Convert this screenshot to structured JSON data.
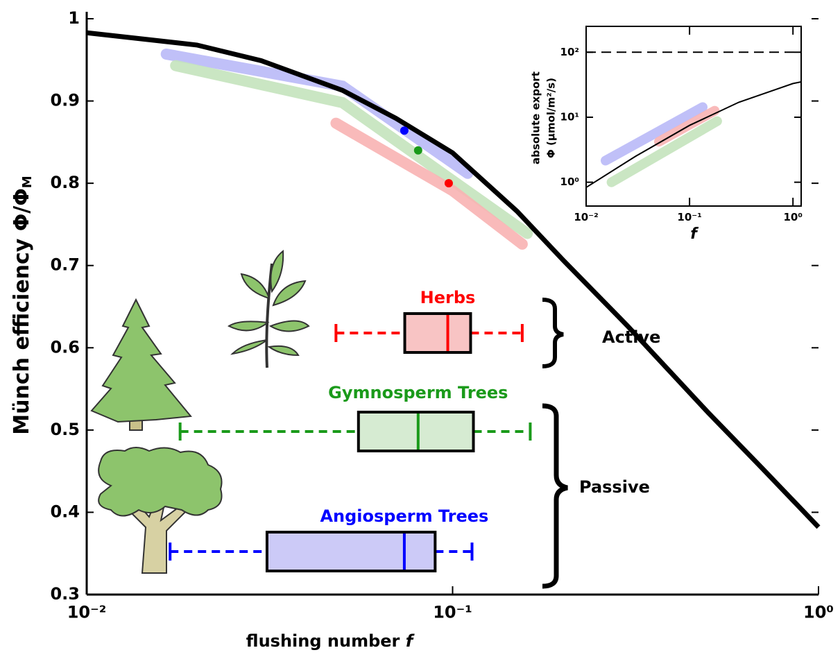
{
  "chart_data": [
    {
      "type": "line",
      "xscale": "log",
      "x_label": "flushing number",
      "x_label_var": "f",
      "y_label": "Münch efficiency Φ/Φ",
      "y_label_sub": "M",
      "xlim": [
        0.01,
        1
      ],
      "ylim": [
        0.3,
        1
      ],
      "xticks": [
        {
          "value": 0.01,
          "label": "10⁻²"
        },
        {
          "value": 0.1,
          "label": "10⁻¹"
        },
        {
          "value": 1,
          "label": "10⁰"
        }
      ],
      "yticks": [
        0.3,
        0.4,
        0.5,
        0.6,
        0.7,
        0.8,
        0.9,
        1
      ],
      "series": [
        {
          "style": "band",
          "color": "#b9b9f7",
          "x": [
            0.0165,
            0.05,
            0.11
          ],
          "values": [
            0.957,
            0.918,
            0.812
          ]
        },
        {
          "style": "band",
          "color": "#c4e3bd",
          "x": [
            0.0175,
            0.05,
            0.16
          ],
          "values": [
            0.943,
            0.898,
            0.739
          ]
        },
        {
          "style": "band",
          "color": "#f8b3b3",
          "x": [
            0.048,
            0.1,
            0.155
          ],
          "values": [
            0.873,
            0.791,
            0.726
          ]
        },
        {
          "style": "curve",
          "color": "#000000",
          "x": [
            0.01,
            0.02,
            0.03,
            0.05,
            0.07,
            0.1,
            0.15,
            0.2,
            0.3,
            0.5,
            0.7,
            1
          ],
          "values": [
            0.983,
            0.968,
            0.949,
            0.913,
            0.879,
            0.837,
            0.766,
            0.707,
            0.627,
            0.521,
            0.454,
            0.382
          ]
        }
      ],
      "points": [
        {
          "color": "#0000ff",
          "x": 0.0738,
          "value": 0.864
        },
        {
          "color": "#1a9a1a",
          "x": 0.0805,
          "value": 0.84
        },
        {
          "color": "#ff0000",
          "x": 0.0976,
          "value": 0.8
        }
      ],
      "boxes": [
        {
          "name": "Herbs",
          "color": "#ff0000",
          "fill": "#f8c4c4",
          "whisker_low": 0.048,
          "q1": 0.074,
          "median": 0.097,
          "q3": 0.112,
          "whisker_high": 0.155
        },
        {
          "name": "Gymnosperm Trees",
          "color": "#1a9a1a",
          "fill": "#d6ebd2",
          "whisker_low": 0.018,
          "q1": 0.0553,
          "median": 0.0805,
          "q3": 0.114,
          "whisker_high": 0.163
        },
        {
          "name": "Angiosperm Trees",
          "color": "#0000ff",
          "fill": "#cccaf7",
          "whisker_low": 0.0169,
          "q1": 0.0311,
          "median": 0.0738,
          "q3": 0.0896,
          "whisker_high": 0.113
        }
      ],
      "group_labels": [
        "Active",
        "Passive"
      ]
    },
    {
      "type": "line",
      "xscale": "log",
      "yscale": "log",
      "x_label": "f",
      "y_label": "absolute export",
      "y_label_2": "Φ (μmol/m²/s)",
      "xlim": [
        0.01,
        1.2
      ],
      "ylim": [
        0.43,
        250
      ],
      "xticks": [
        {
          "value": 0.01,
          "label": "10⁻²"
        },
        {
          "value": 0.1,
          "label": "10⁻¹"
        },
        {
          "value": 1,
          "label": "10⁰"
        }
      ],
      "yticks": [
        {
          "value": 1,
          "label": "10⁰"
        },
        {
          "value": 10,
          "label": "10¹"
        },
        {
          "value": 100,
          "label": "10²"
        }
      ],
      "reference": 100,
      "series": [
        {
          "style": "band",
          "color": "#b9b9f7",
          "x": [
            0.0154,
            0.134
          ],
          "values": [
            2.15,
            14.3
          ]
        },
        {
          "style": "band",
          "color": "#c4e3bd",
          "x": [
            0.0176,
            0.185
          ],
          "values": [
            1.0,
            8.7
          ]
        },
        {
          "style": "band",
          "color": "#f8b3b3",
          "x": [
            0.0506,
            0.175
          ],
          "values": [
            4.2,
            12.6
          ]
        },
        {
          "style": "curve",
          "color": "#000000",
          "x": [
            0.01,
            0.03,
            0.1,
            0.3,
            1,
            1.2
          ],
          "values": [
            0.83,
            2.5,
            7.5,
            17,
            33,
            35
          ]
        }
      ]
    }
  ]
}
